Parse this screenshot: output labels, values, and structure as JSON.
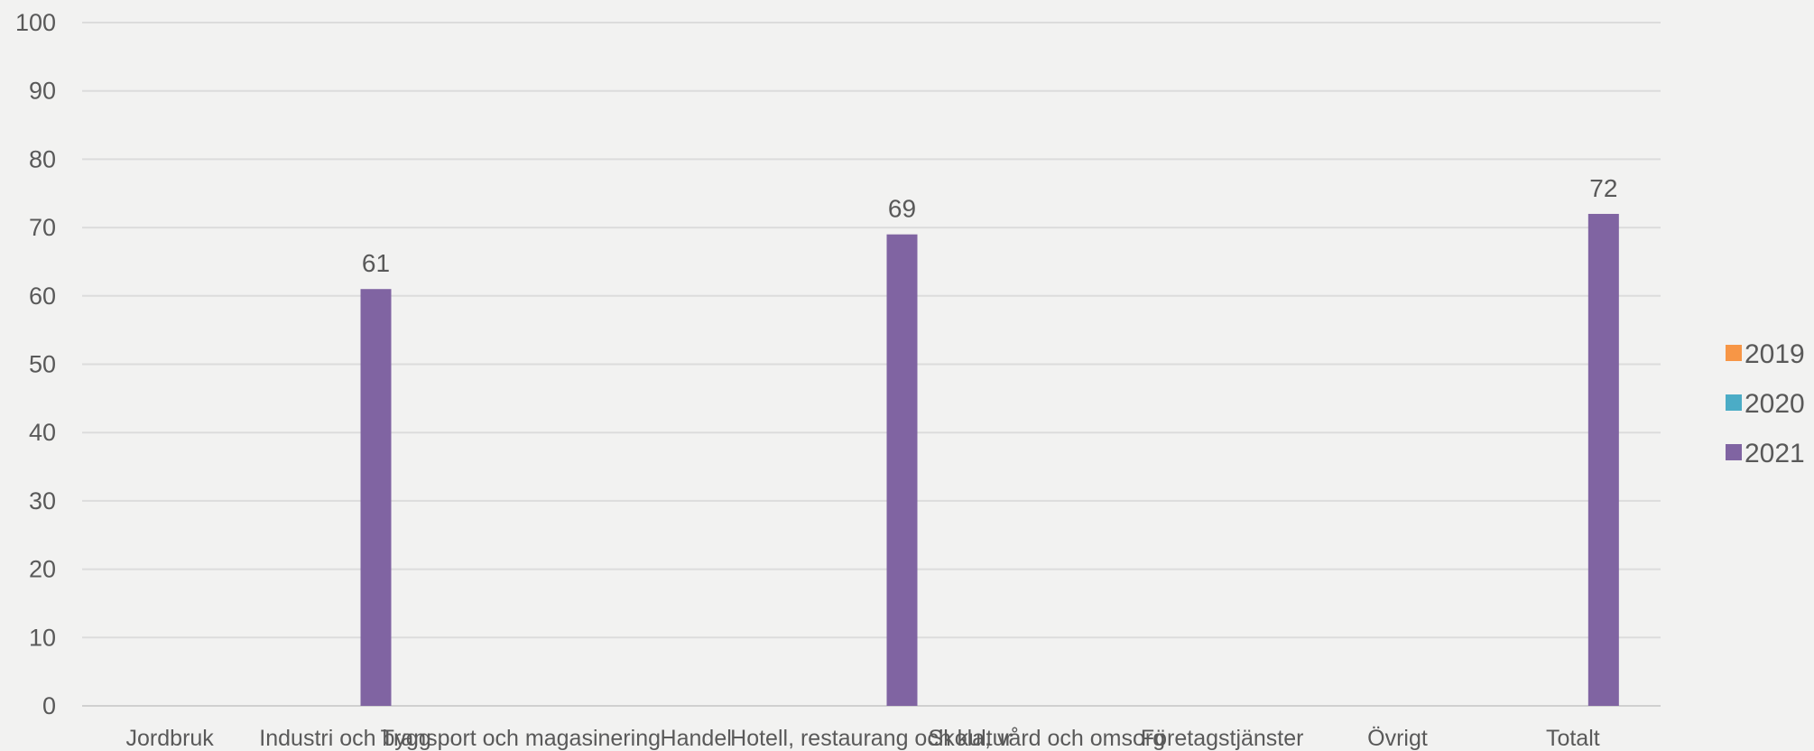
{
  "chart_data": {
    "type": "bar",
    "title": "",
    "xlabel": "",
    "ylabel": "",
    "ylim": [
      0,
      100
    ],
    "ytick_step": 10,
    "grid": true,
    "legend_position": "right",
    "categories": [
      "Jordbruk",
      "Industri och bygg",
      "Transport och magasinering",
      "Handel",
      "Hotell, restaurang och kultur",
      "Skola, vård och omsorg",
      "Företagstjänster",
      "Övrigt",
      "Totalt"
    ],
    "series": [
      {
        "name": "2019",
        "color": "#f79646",
        "values": [
          null,
          null,
          null,
          null,
          null,
          null,
          null,
          null,
          null
        ]
      },
      {
        "name": "2020",
        "color": "#4bacc6",
        "values": [
          null,
          null,
          null,
          null,
          null,
          null,
          null,
          null,
          null
        ]
      },
      {
        "name": "2021",
        "color": "#8064a2",
        "values": [
          null,
          61,
          null,
          null,
          69,
          null,
          null,
          null,
          72
        ]
      }
    ]
  }
}
